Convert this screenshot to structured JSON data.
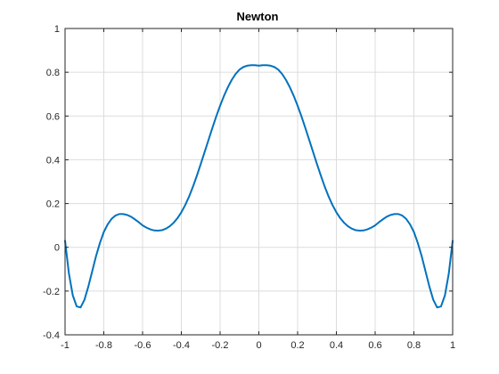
{
  "chart_data": {
    "type": "line",
    "title": "Newton",
    "xlabel": "",
    "ylabel": "",
    "xlim": [
      -1,
      1
    ],
    "ylim": [
      -0.4,
      1
    ],
    "grid": true,
    "legend": "none",
    "x_ticks": [
      -1,
      -0.8,
      -0.6,
      -0.4,
      -0.2,
      0,
      0.2,
      0.4,
      0.6,
      0.8,
      1
    ],
    "x_tick_labels": [
      "-1",
      "-0.8",
      "-0.6",
      "-0.4",
      "-0.2",
      "0",
      "0.2",
      "0.4",
      "0.6",
      "0.8",
      "1"
    ],
    "y_ticks": [
      -0.4,
      -0.2,
      0,
      0.2,
      0.4,
      0.6,
      0.8,
      1
    ],
    "y_tick_labels": [
      "-0.4",
      "-0.2",
      "0",
      "0.2",
      "0.4",
      "0.6",
      "0.8",
      "1"
    ],
    "series": [
      {
        "color": "#0072BD",
        "x": [
          -1,
          -0.98,
          -0.96,
          -0.94,
          -0.92,
          -0.9,
          -0.88,
          -0.86,
          -0.84,
          -0.82,
          -0.8,
          -0.78,
          -0.76,
          -0.74,
          -0.72,
          -0.7,
          -0.68,
          -0.66,
          -0.64,
          -0.62,
          -0.6,
          -0.58,
          -0.56,
          -0.54,
          -0.52,
          -0.5,
          -0.48,
          -0.46,
          -0.44,
          -0.42,
          -0.4,
          -0.38,
          -0.36,
          -0.34,
          -0.32,
          -0.3,
          -0.28,
          -0.26,
          -0.24,
          -0.22,
          -0.2,
          -0.18,
          -0.16,
          -0.14,
          -0.12,
          -0.1,
          -0.08,
          -0.06,
          -0.04,
          -0.02,
          0,
          0.02,
          0.04,
          0.06,
          0.08,
          0.1,
          0.12,
          0.14,
          0.16,
          0.18,
          0.2,
          0.22,
          0.24,
          0.26,
          0.28,
          0.3,
          0.32,
          0.34,
          0.36,
          0.38,
          0.4,
          0.42,
          0.44,
          0.46,
          0.48,
          0.5,
          0.52,
          0.54,
          0.56,
          0.58,
          0.6,
          0.62,
          0.64,
          0.66,
          0.68,
          0.7,
          0.72,
          0.74,
          0.76,
          0.78,
          0.8,
          0.82,
          0.84,
          0.86,
          0.88,
          0.9,
          0.92,
          0.94,
          0.96,
          0.98,
          1
        ],
        "y": [
          0.03,
          -0.12,
          -0.22,
          -0.27,
          -0.275,
          -0.24,
          -0.18,
          -0.11,
          -0.04,
          0.02,
          0.07,
          0.105,
          0.13,
          0.145,
          0.152,
          0.152,
          0.148,
          0.14,
          0.128,
          0.115,
          0.1,
          0.09,
          0.082,
          0.077,
          0.076,
          0.078,
          0.085,
          0.096,
          0.112,
          0.133,
          0.16,
          0.193,
          0.232,
          0.277,
          0.327,
          0.38,
          0.435,
          0.49,
          0.545,
          0.598,
          0.647,
          0.692,
          0.731,
          0.765,
          0.792,
          0.812,
          0.824,
          0.83,
          0.832,
          0.832,
          0.83,
          0.832,
          0.832,
          0.83,
          0.824,
          0.812,
          0.792,
          0.765,
          0.731,
          0.692,
          0.647,
          0.598,
          0.545,
          0.49,
          0.435,
          0.38,
          0.327,
          0.277,
          0.232,
          0.193,
          0.16,
          0.133,
          0.112,
          0.096,
          0.085,
          0.078,
          0.076,
          0.077,
          0.082,
          0.09,
          0.1,
          0.115,
          0.128,
          0.14,
          0.148,
          0.152,
          0.152,
          0.145,
          0.13,
          0.105,
          0.07,
          0.02,
          -0.04,
          -0.11,
          -0.18,
          -0.24,
          -0.275,
          -0.27,
          -0.22,
          -0.12,
          0.03
        ]
      }
    ]
  }
}
